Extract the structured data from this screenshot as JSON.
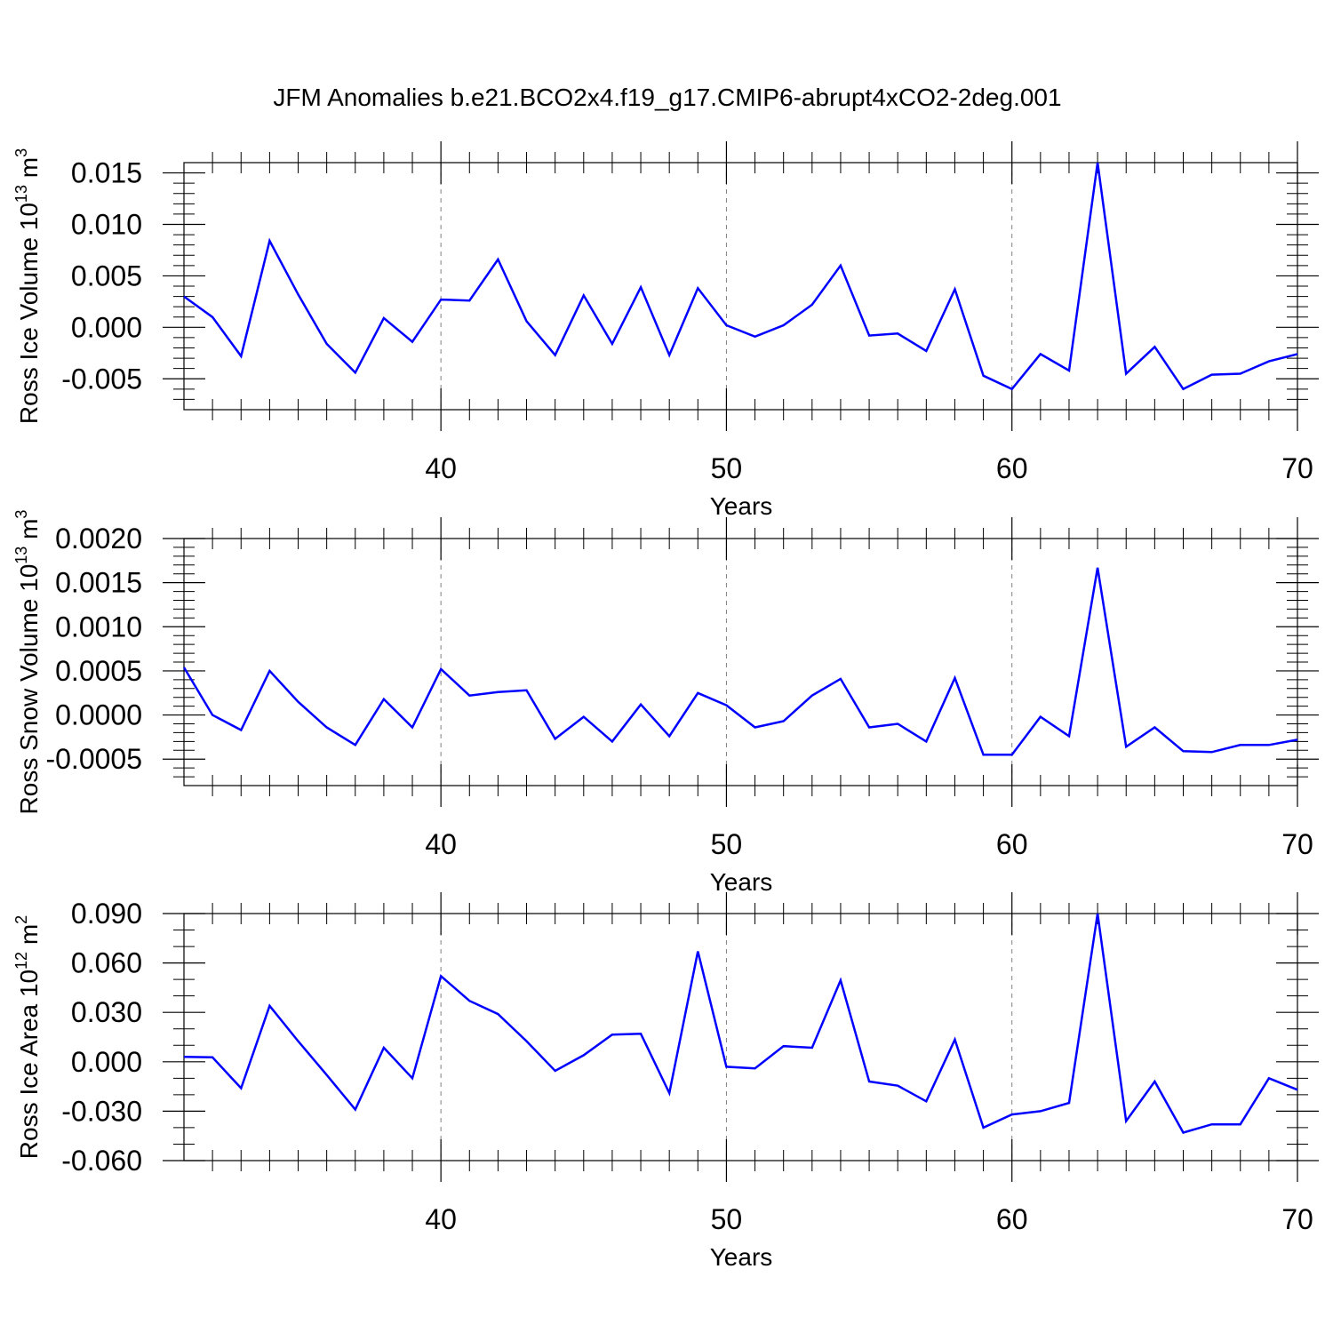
{
  "title": "JFM Anomalies b.e21.BCO2x4.f19_g17.CMIP6-abrupt4xCO2-2deg.001",
  "colors": {
    "line": "#0000ff",
    "axis": "#000000",
    "grid": "#808080"
  },
  "chart_data": [
    {
      "type": "line",
      "ylabel": "Ross Ice Volume 10",
      "ylabel_sup": "13",
      "ylabel_unit": " m",
      "ylabel_unit_sup": "3",
      "xlabel": "Years",
      "xlim": [
        31,
        70
      ],
      "ylim": [
        -0.008,
        0.016
      ],
      "yticks": [
        0.015,
        0.01,
        0.005,
        0.0,
        -0.005
      ],
      "ytick_labels": [
        "0.015",
        "0.010",
        "0.005",
        "0.000",
        "-0.005"
      ],
      "xticks": [
        40,
        50,
        60,
        70
      ],
      "xtick_labels": [
        "40",
        "50",
        "60",
        "70"
      ],
      "x": [
        31,
        32,
        33,
        34,
        35,
        36,
        37,
        38,
        39,
        40,
        41,
        42,
        43,
        44,
        45,
        46,
        47,
        48,
        49,
        50,
        51,
        52,
        53,
        54,
        55,
        56,
        57,
        58,
        59,
        60,
        61,
        62,
        63,
        64,
        65,
        66,
        67,
        68,
        69,
        70
      ],
      "values": [
        0.003,
        0.001,
        -0.0028,
        0.0084,
        0.0032,
        -0.0016,
        -0.0044,
        0.0009,
        -0.0014,
        0.0027,
        0.0026,
        0.0066,
        0.0006,
        -0.0027,
        0.0031,
        -0.0016,
        0.0039,
        -0.0027,
        0.0038,
        0.0002,
        -0.0009,
        0.0002,
        0.0022,
        0.006,
        -0.0008,
        -0.0006,
        -0.0023,
        0.0037,
        -0.0047,
        -0.006,
        -0.0026,
        -0.0042,
        0.016,
        -0.0045,
        -0.0019,
        -0.006,
        -0.0046,
        -0.0045,
        -0.0033,
        -0.0026
      ]
    },
    {
      "type": "line",
      "ylabel": "Ross Snow Volume 10",
      "ylabel_sup": "13",
      "ylabel_unit": " m",
      "ylabel_unit_sup": "3",
      "xlabel": "Years",
      "xlim": [
        31,
        70
      ],
      "ylim": [
        -0.0008,
        0.002
      ],
      "yticks": [
        0.002,
        0.0015,
        0.001,
        0.0005,
        0.0,
        -0.0005
      ],
      "ytick_labels": [
        "0.0020",
        "0.0015",
        "0.0010",
        "0.0005",
        "0.0000",
        "-0.0005"
      ],
      "xticks": [
        40,
        50,
        60,
        70
      ],
      "xtick_labels": [
        "40",
        "50",
        "60",
        "70"
      ],
      "x": [
        31,
        32,
        33,
        34,
        35,
        36,
        37,
        38,
        39,
        40,
        41,
        42,
        43,
        44,
        45,
        46,
        47,
        48,
        49,
        50,
        51,
        52,
        53,
        54,
        55,
        56,
        57,
        58,
        59,
        60,
        61,
        62,
        63,
        64,
        65,
        66,
        67,
        68,
        69,
        70
      ],
      "values": [
        0.00054,
        0.0,
        -0.00017,
        0.0005,
        0.00015,
        -0.00014,
        -0.00034,
        0.00018,
        -0.00014,
        0.00052,
        0.00022,
        0.00026,
        0.00028,
        -0.00027,
        -2e-05,
        -0.0003,
        0.00012,
        -0.00024,
        0.00025,
        0.00011,
        -0.00014,
        -7e-05,
        0.00022,
        0.00041,
        -0.00014,
        -0.0001,
        -0.0003,
        0.00042,
        -0.00045,
        -0.00045,
        -2e-05,
        -0.00024,
        0.00167,
        -0.00036,
        -0.00014,
        -0.00041,
        -0.00042,
        -0.00034,
        -0.00034,
        -0.00028
      ]
    },
    {
      "type": "line",
      "ylabel": "Ross Ice Area 10",
      "ylabel_sup": "12",
      "ylabel_unit": " m",
      "ylabel_unit_sup": "2",
      "xlabel": "Years",
      "xlim": [
        31,
        70
      ],
      "ylim": [
        -0.06,
        0.09
      ],
      "yticks": [
        0.09,
        0.06,
        0.03,
        0.0,
        -0.03,
        -0.06
      ],
      "ytick_labels": [
        "0.090",
        "0.060",
        "0.030",
        "0.000",
        "-0.030",
        "-0.060"
      ],
      "xticks": [
        40,
        50,
        60,
        70
      ],
      "xtick_labels": [
        "40",
        "50",
        "60",
        "70"
      ],
      "x": [
        31,
        32,
        33,
        34,
        35,
        36,
        37,
        38,
        39,
        40,
        41,
        42,
        43,
        44,
        45,
        46,
        47,
        48,
        49,
        50,
        51,
        52,
        53,
        54,
        55,
        56,
        57,
        58,
        59,
        60,
        61,
        62,
        63,
        64,
        65,
        66,
        67,
        68,
        69,
        70
      ],
      "values": [
        0.003,
        0.0027,
        -0.016,
        0.034,
        0.0125,
        -0.008,
        -0.029,
        0.0085,
        -0.01,
        0.052,
        0.037,
        0.029,
        0.0125,
        -0.0055,
        0.004,
        0.0165,
        0.017,
        -0.019,
        0.067,
        -0.003,
        -0.004,
        0.0095,
        0.0085,
        0.0495,
        -0.012,
        -0.0145,
        -0.024,
        0.0135,
        -0.04,
        -0.032,
        -0.03,
        -0.025,
        0.09,
        -0.036,
        -0.012,
        -0.043,
        -0.038,
        -0.038,
        -0.01,
        -0.017
      ]
    }
  ]
}
